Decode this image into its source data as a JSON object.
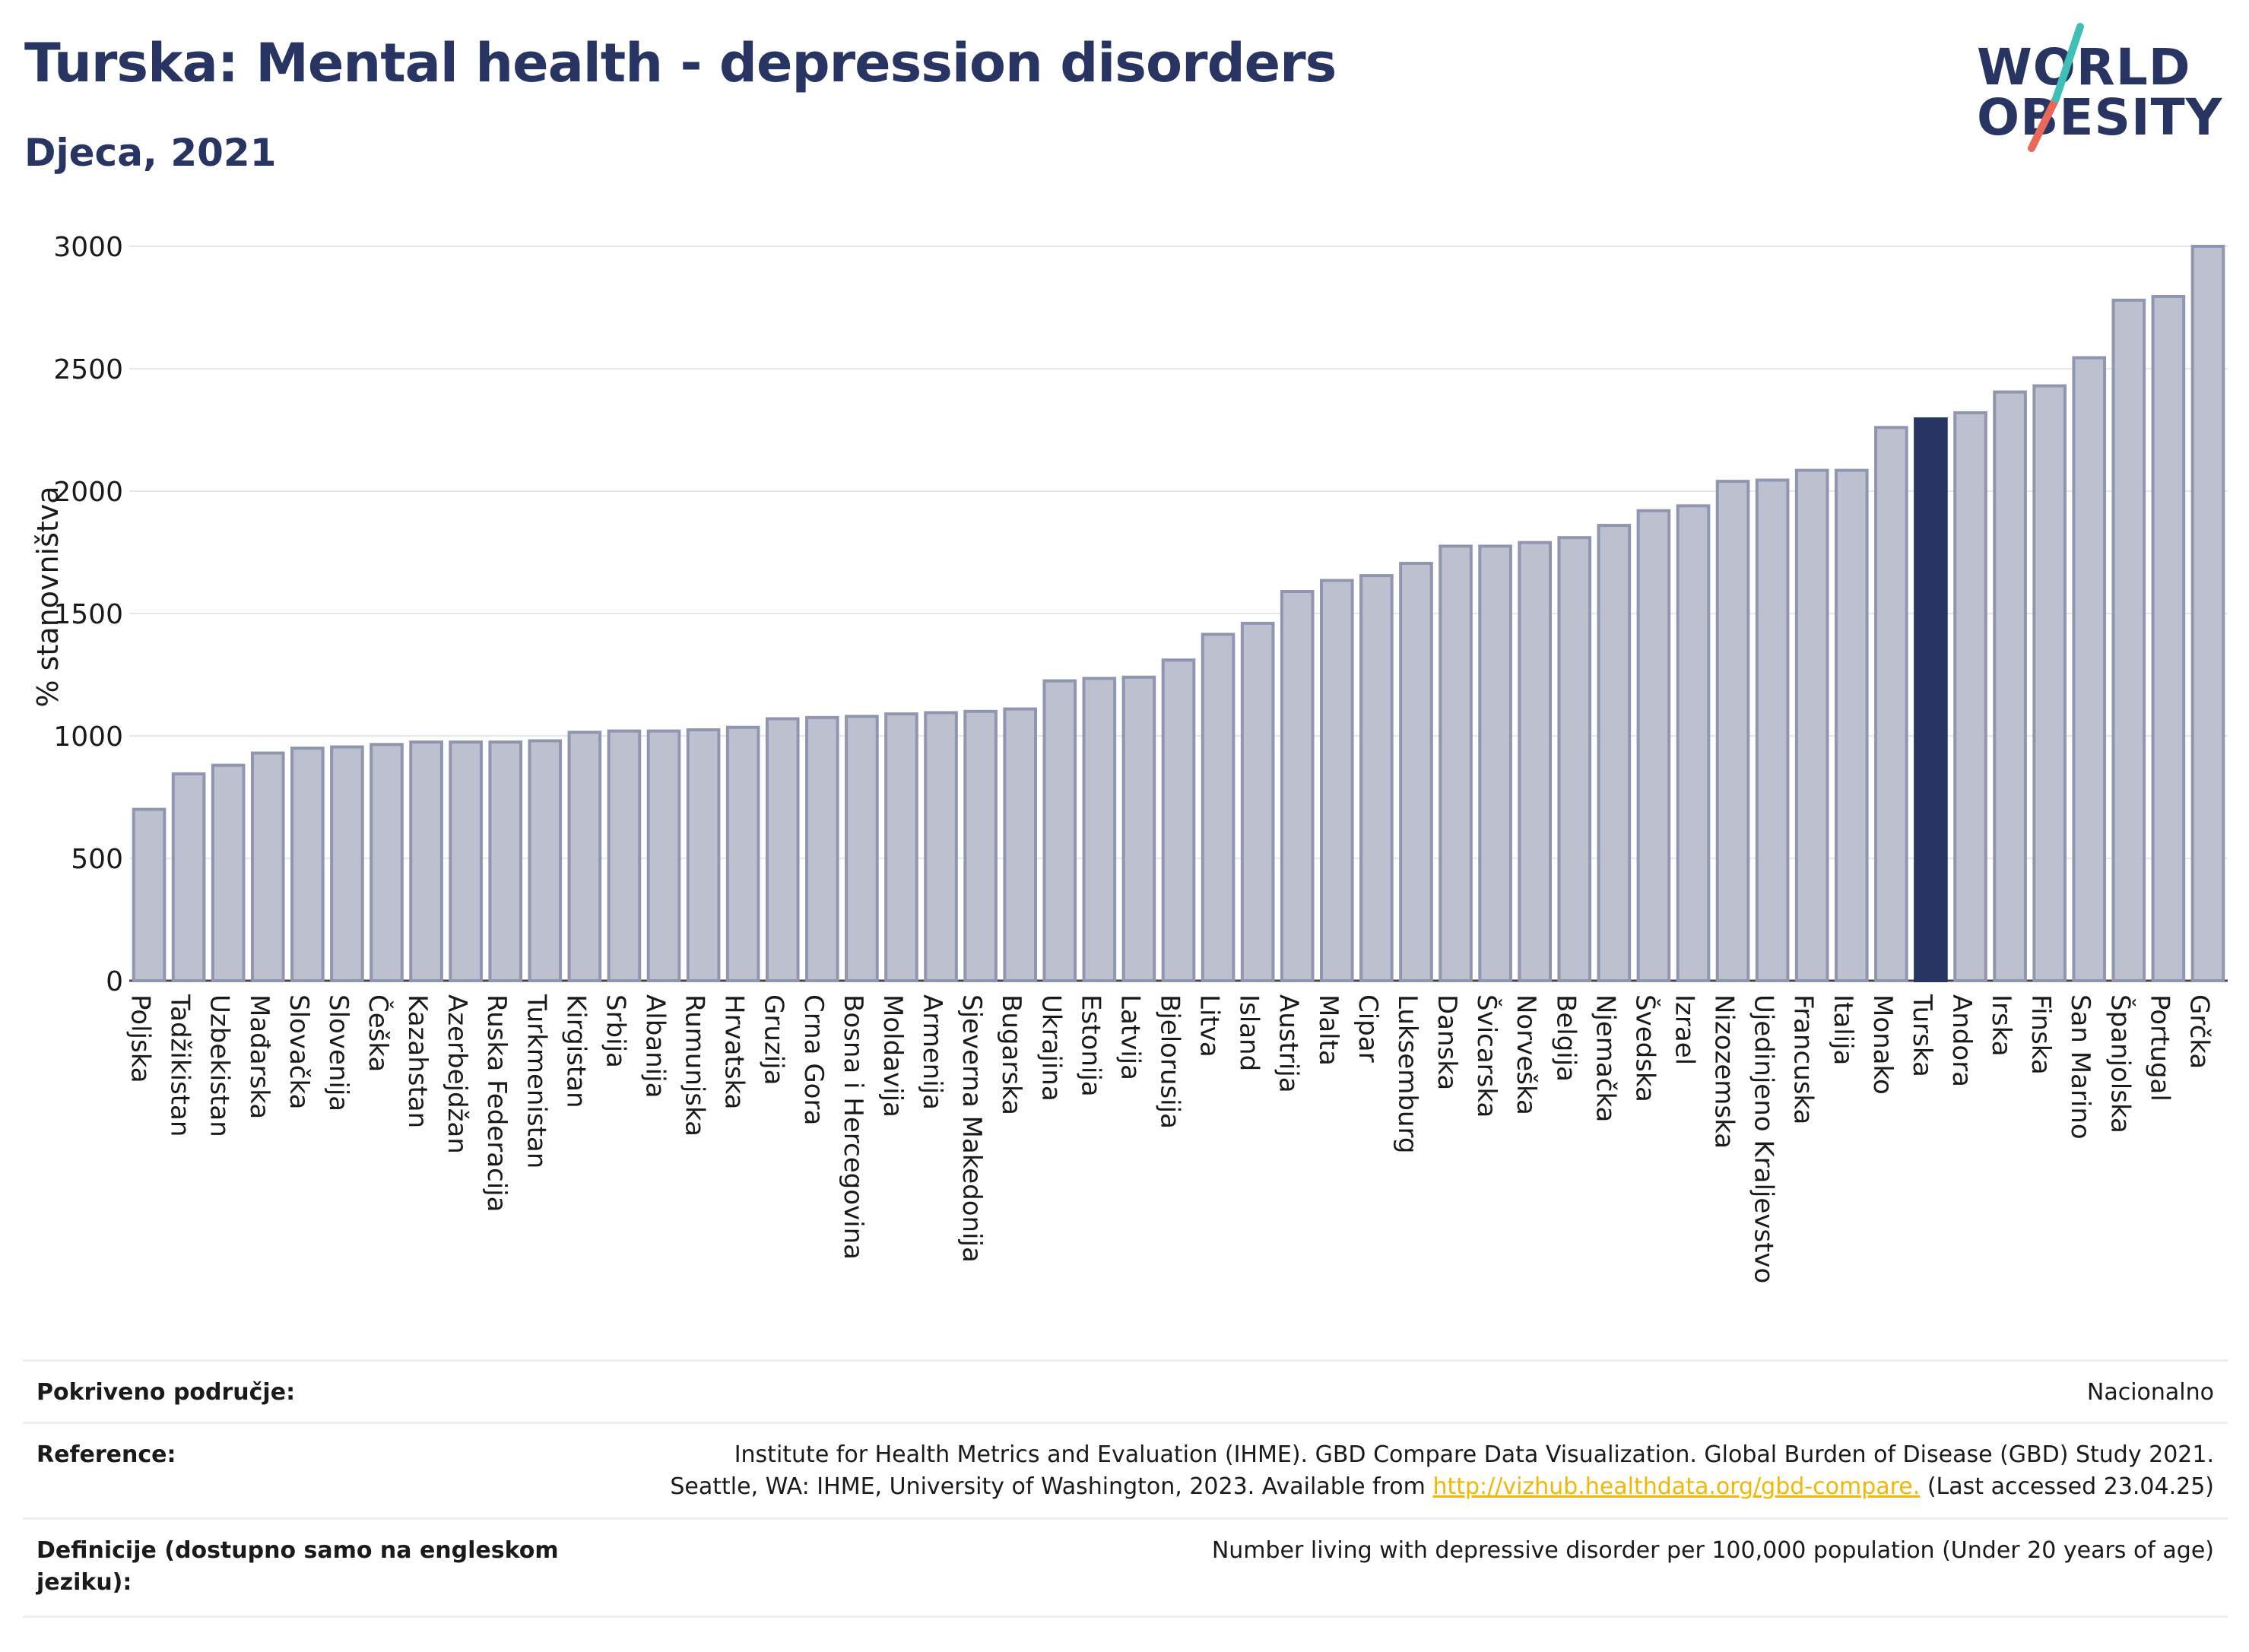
{
  "header": {
    "title": "Turska: Mental health - depression disorders",
    "subtitle": "Djeca, 2021"
  },
  "logo": {
    "line1": "WORLD",
    "line2": "OBESITY"
  },
  "colors": {
    "bar": "#bcc0cf",
    "bar_stroke": "#9096b0",
    "highlight": "#283562",
    "grid": "#e6e8ef"
  },
  "chart_data": {
    "type": "bar",
    "ylabel": "% stanovništva",
    "ylim": [
      0,
      3000
    ],
    "yticks": [
      0,
      500,
      1000,
      1500,
      2000,
      2500,
      3000
    ],
    "highlight": "Turska",
    "categories": [
      "Poljska",
      "Tadžikistan",
      "Uzbekistan",
      "Mađarska",
      "Slovačka",
      "Slovenija",
      "Češka",
      "Kazahstan",
      "Azerbejdžan",
      "Ruska Federacija",
      "Turkmenistan",
      "Kirgistan",
      "Srbija",
      "Albanija",
      "Rumunjska",
      "Hrvatska",
      "Gruzija",
      "Crna Gora",
      "Bosna i Hercegovina",
      "Moldavija",
      "Armenija",
      "Sjeverna Makedonija",
      "Bugarska",
      "Ukrajina",
      "Estonija",
      "Latvija",
      "Bjelorusija",
      "Litva",
      "Island",
      "Austrija",
      "Malta",
      "Cipar",
      "Luksemburg",
      "Danska",
      "Švicarska",
      "Norveška",
      "Belgija",
      "Njemačka",
      "Švedska",
      "Izrael",
      "Nizozemska",
      "Ujedinjeno Kraljevstvo",
      "Francuska",
      "Italija",
      "Monako",
      "Turska",
      "Andora",
      "Irska",
      "Finska",
      "San Marino",
      "Španjolska",
      "Portugal",
      "Grčka"
    ],
    "values": [
      700,
      845,
      880,
      930,
      950,
      955,
      965,
      975,
      975,
      975,
      980,
      1015,
      1020,
      1020,
      1025,
      1035,
      1070,
      1075,
      1080,
      1090,
      1095,
      1100,
      1110,
      1225,
      1235,
      1240,
      1310,
      1415,
      1460,
      1590,
      1635,
      1655,
      1705,
      1775,
      1775,
      1790,
      1810,
      1860,
      1920,
      1940,
      2040,
      2045,
      2085,
      2085,
      2260,
      2295,
      2320,
      2405,
      2430,
      2545,
      2780,
      2795,
      3000
    ]
  },
  "footer": {
    "coverage_label": "Pokriveno područje:",
    "coverage_value": "Nacionalno",
    "reference_label": "Reference:",
    "reference_line1": "Institute for Health Metrics and Evaluation (IHME). GBD Compare Data Visualization. Global Burden of Disease (GBD) Study 2021.",
    "reference_line2_pre": "Seattle, WA: IHME, University of Washington, 2023. Available from",
    "reference_link": "http://vizhub.healthdata.org/gbd-compare.",
    "reference_line2_post": "(Last accessed 23.04.25)",
    "definition_label": "Definicije (dostupno samo na engleskom jeziku):",
    "definition_value": "Number living with depressive disorder per 100,000 population (Under 20 years of age)"
  }
}
